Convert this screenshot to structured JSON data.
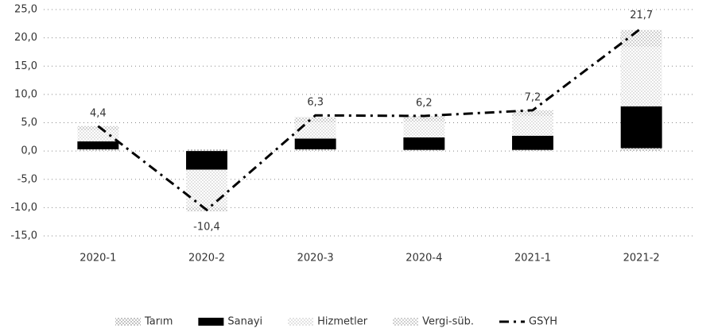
{
  "chart_data": {
    "type": "bar",
    "categories": [
      "2020-1",
      "2020-2",
      "2020-3",
      "2020-4",
      "2021-1",
      "2021-2"
    ],
    "series": [
      {
        "name": "Tarım",
        "color": "#9a9a9a",
        "values": [
          0.3,
          0.3,
          0.3,
          0.2,
          0.2,
          0.5
        ]
      },
      {
        "name": "Sanayi",
        "color": "#000000",
        "values": [
          1.4,
          -3.3,
          1.9,
          2.2,
          2.5,
          7.4
        ]
      },
      {
        "name": "Hizmetler",
        "color": "#cfcfcf",
        "values": [
          2.0,
          -6.6,
          2.8,
          2.8,
          3.5,
          10.5
        ]
      },
      {
        "name": "Vergi-süb.",
        "color": "#b0b0b0",
        "values": [
          0.7,
          -0.8,
          1.0,
          1.0,
          1.0,
          3.0
        ]
      },
      {
        "name": "GSYH",
        "color": "#000000",
        "type": "line",
        "values": [
          4.4,
          -10.4,
          6.3,
          6.2,
          7.2,
          21.7
        ],
        "value_labels": [
          "4,4",
          "-10,4",
          "6,3",
          "6,2",
          "7,2",
          "21,7"
        ]
      }
    ],
    "ylim": [
      -15,
      25
    ],
    "yticks": [
      {
        "value": -15,
        "label": "-15,0"
      },
      {
        "value": -10,
        "label": "-10,0"
      },
      {
        "value": -5,
        "label": "-5,0"
      },
      {
        "value": 0,
        "label": "0,0"
      },
      {
        "value": 5,
        "label": "5,0"
      },
      {
        "value": 10,
        "label": "10,0"
      },
      {
        "value": 15,
        "label": "15,0"
      },
      {
        "value": 20,
        "label": "20,0"
      },
      {
        "value": 25,
        "label": "25,0"
      }
    ],
    "grid": true,
    "legend": "bottom"
  }
}
